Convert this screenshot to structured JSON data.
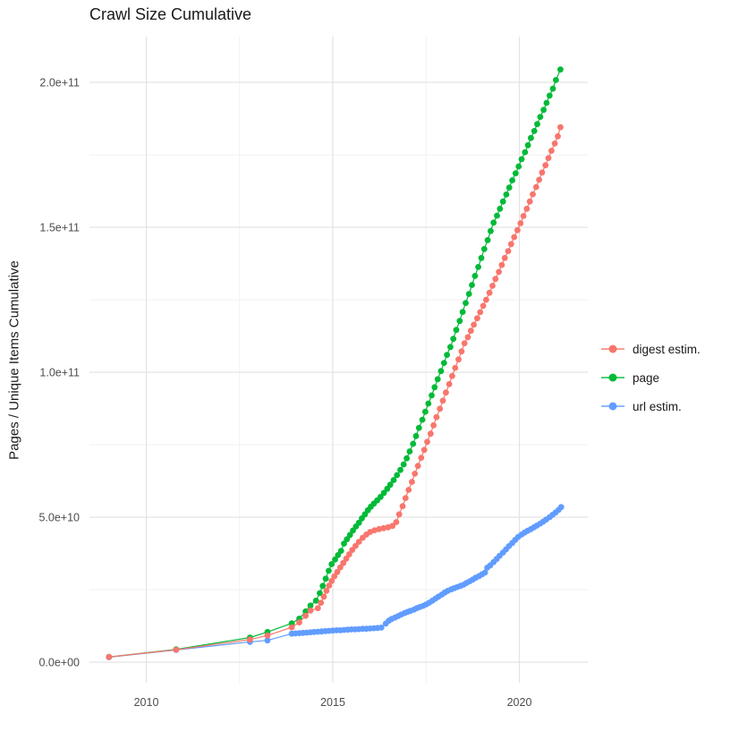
{
  "title": "Crawl Size Cumulative",
  "y_axis": {
    "title": "Pages / Unique Items Cumulative",
    "tick_labels": [
      "0.0e+00",
      "5.0e+10",
      "1.0e+11",
      "1.5e+11",
      "2.0e+11"
    ],
    "tick_values_e9": [
      0,
      50,
      100,
      150,
      200
    ],
    "minor_tick_values_e9": [
      25,
      75,
      125,
      175
    ]
  },
  "x_axis": {
    "tick_labels": [
      "2010",
      "2015",
      "2020"
    ],
    "tick_values": [
      2010,
      2015,
      2020
    ],
    "minor_tick_values": [
      2012.5,
      2017.5
    ]
  },
  "legend": {
    "items": [
      {
        "label": "digest estim.",
        "color": "#F8766D"
      },
      {
        "label": "page",
        "color": "#00BA38"
      },
      {
        "label": "url estim.",
        "color": "#619CFF"
      }
    ]
  },
  "colors": {
    "background": "#FFFFFF",
    "grid_major": "#E3E3E3",
    "grid_minor": "#F1F1F1",
    "title_text": "#1A1A1A",
    "tick_text": "#4D4D4D",
    "digest": "#F8766D",
    "page": "#00BA38",
    "url": "#619CFF"
  },
  "chart_data": {
    "type": "scatter",
    "title": "Crawl Size Cumulative",
    "xlabel": "",
    "ylabel": "Pages / Unique Items Cumulative",
    "x_unit": "year",
    "value_unit": "pages (1e9)",
    "xlim": [
      2008.48,
      2021.83
    ],
    "ylim_e9": [
      -7,
      216
    ],
    "grid": true,
    "legend_position": "right",
    "series": [
      {
        "name": "digest estim.",
        "color": "#F8766D",
        "points": [
          [
            2009,
            1.8
          ],
          [
            2010.8,
            4.3
          ],
          [
            2012.78,
            7.8
          ],
          [
            2013.25,
            9.2
          ],
          [
            2013.9,
            12
          ],
          [
            2014.1,
            13.7
          ],
          [
            2014.27,
            16
          ],
          [
            2014.4,
            17.8
          ],
          [
            2014.6,
            18.6
          ],
          [
            2014.68,
            20.5
          ],
          [
            2014.76,
            22.6
          ],
          [
            2014.83,
            24.6
          ],
          [
            2014.9,
            26.4
          ],
          [
            2014.97,
            28
          ],
          [
            2015.04,
            29.6
          ],
          [
            2015.12,
            31.1
          ],
          [
            2015.2,
            32.7
          ],
          [
            2015.28,
            34.2
          ],
          [
            2015.36,
            35.7
          ],
          [
            2015.44,
            37.2
          ],
          [
            2015.52,
            38.7
          ],
          [
            2015.61,
            40.1
          ],
          [
            2015.7,
            41.5
          ],
          [
            2015.8,
            42.9
          ],
          [
            2015.9,
            44
          ],
          [
            2016,
            44.9
          ],
          [
            2016.12,
            45.5
          ],
          [
            2016.24,
            45.9
          ],
          [
            2016.36,
            46.2
          ],
          [
            2016.48,
            46.5
          ],
          [
            2016.6,
            47
          ],
          [
            2016.7,
            48.3
          ],
          [
            2016.78,
            51
          ],
          [
            2016.87,
            53.8
          ],
          [
            2016.95,
            56.6
          ],
          [
            2017.03,
            59.4
          ],
          [
            2017.12,
            62.2
          ],
          [
            2017.2,
            65
          ],
          [
            2017.28,
            67.7
          ],
          [
            2017.37,
            70.5
          ],
          [
            2017.45,
            73.2
          ],
          [
            2017.53,
            76
          ],
          [
            2017.62,
            78.8
          ],
          [
            2017.7,
            81.7
          ],
          [
            2017.78,
            84.5
          ],
          [
            2017.87,
            87.4
          ],
          [
            2017.95,
            90.2
          ],
          [
            2018.03,
            93
          ],
          [
            2018.12,
            95.9
          ],
          [
            2018.2,
            98.7
          ],
          [
            2018.28,
            101.5
          ],
          [
            2018.37,
            104.4
          ],
          [
            2018.45,
            107.2
          ],
          [
            2018.53,
            110
          ],
          [
            2018.62,
            112.1
          ],
          [
            2018.7,
            114.3
          ],
          [
            2018.78,
            116.4
          ],
          [
            2018.87,
            118.6
          ],
          [
            2018.95,
            120.7
          ],
          [
            2019.03,
            122.9
          ],
          [
            2019.11,
            125
          ],
          [
            2019.2,
            127.4
          ],
          [
            2019.28,
            129.8
          ],
          [
            2019.36,
            132.2
          ],
          [
            2019.45,
            134.6
          ],
          [
            2019.53,
            137
          ],
          [
            2019.61,
            139.4
          ],
          [
            2019.7,
            141.8
          ],
          [
            2019.78,
            144.2
          ],
          [
            2019.86,
            146.6
          ],
          [
            2019.95,
            149
          ],
          [
            2020.03,
            151.4
          ],
          [
            2020.11,
            153.9
          ],
          [
            2020.2,
            156.4
          ],
          [
            2020.28,
            158.9
          ],
          [
            2020.36,
            161.4
          ],
          [
            2020.45,
            163.9
          ],
          [
            2020.53,
            166.4
          ],
          [
            2020.61,
            168.9
          ],
          [
            2020.7,
            171.4
          ],
          [
            2020.78,
            173.9
          ],
          [
            2020.86,
            176.4
          ],
          [
            2020.95,
            178.9
          ],
          [
            2021.03,
            181.4
          ],
          [
            2021.1,
            184.5
          ]
        ]
      },
      {
        "name": "page",
        "color": "#00BA38",
        "points": [
          [
            2009,
            1.8
          ],
          [
            2010.8,
            4.4
          ],
          [
            2012.78,
            8.5
          ],
          [
            2013.25,
            10.4
          ],
          [
            2013.9,
            13.4
          ],
          [
            2014.1,
            15
          ],
          [
            2014.27,
            17.5
          ],
          [
            2014.4,
            19.5
          ],
          [
            2014.55,
            21.2
          ],
          [
            2014.65,
            23.8
          ],
          [
            2014.73,
            26.3
          ],
          [
            2014.81,
            28.8
          ],
          [
            2014.89,
            31.5
          ],
          [
            2014.97,
            33.8
          ],
          [
            2015.06,
            35.4
          ],
          [
            2015.14,
            36.9
          ],
          [
            2015.22,
            38.4
          ],
          [
            2015.3,
            40.9
          ],
          [
            2015.38,
            42.4
          ],
          [
            2015.46,
            43.9
          ],
          [
            2015.54,
            45.4
          ],
          [
            2015.62,
            46.8
          ],
          [
            2015.7,
            48.1
          ],
          [
            2015.78,
            49.6
          ],
          [
            2015.86,
            51
          ],
          [
            2015.94,
            52.4
          ],
          [
            2016.02,
            53.6
          ],
          [
            2016.1,
            54.7
          ],
          [
            2016.19,
            55.8
          ],
          [
            2016.28,
            57
          ],
          [
            2016.37,
            58.4
          ],
          [
            2016.46,
            59.8
          ],
          [
            2016.54,
            61.2
          ],
          [
            2016.63,
            62.8
          ],
          [
            2016.72,
            64.5
          ],
          [
            2016.81,
            66.3
          ],
          [
            2016.9,
            68.2
          ],
          [
            2016.98,
            70.3
          ],
          [
            2017.06,
            72.7
          ],
          [
            2017.15,
            75.3
          ],
          [
            2017.23,
            78
          ],
          [
            2017.31,
            80.8
          ],
          [
            2017.4,
            83.6
          ],
          [
            2017.48,
            86.4
          ],
          [
            2017.56,
            89.2
          ],
          [
            2017.65,
            92
          ],
          [
            2017.73,
            94.8
          ],
          [
            2017.81,
            97.6
          ],
          [
            2017.9,
            100.4
          ],
          [
            2017.98,
            103.2
          ],
          [
            2018.06,
            106
          ],
          [
            2018.15,
            108.7
          ],
          [
            2018.23,
            111.5
          ],
          [
            2018.31,
            114.6
          ],
          [
            2018.4,
            117.7
          ],
          [
            2018.48,
            120.8
          ],
          [
            2018.56,
            123.9
          ],
          [
            2018.65,
            127
          ],
          [
            2018.73,
            130.1
          ],
          [
            2018.81,
            133.2
          ],
          [
            2018.9,
            136.3
          ],
          [
            2018.98,
            139.4
          ],
          [
            2019.06,
            142.5
          ],
          [
            2019.15,
            145.6
          ],
          [
            2019.23,
            148.7
          ],
          [
            2019.31,
            151.6
          ],
          [
            2019.4,
            154
          ],
          [
            2019.48,
            156.4
          ],
          [
            2019.56,
            158.9
          ],
          [
            2019.65,
            161.3
          ],
          [
            2019.73,
            163.7
          ],
          [
            2019.81,
            166.2
          ],
          [
            2019.9,
            168.6
          ],
          [
            2019.98,
            171
          ],
          [
            2020.06,
            173.5
          ],
          [
            2020.15,
            175.9
          ],
          [
            2020.23,
            178.3
          ],
          [
            2020.31,
            180.8
          ],
          [
            2020.4,
            183.2
          ],
          [
            2020.48,
            185.6
          ],
          [
            2020.56,
            188.1
          ],
          [
            2020.65,
            190.5
          ],
          [
            2020.73,
            192.9
          ],
          [
            2020.81,
            195.4
          ],
          [
            2020.9,
            197.8
          ],
          [
            2020.98,
            200.8
          ],
          [
            2021.1,
            204.4
          ]
        ]
      },
      {
        "name": "url estim.",
        "color": "#619CFF",
        "points": [
          [
            2009,
            1.7
          ],
          [
            2010.8,
            4.2
          ],
          [
            2012.78,
            7
          ],
          [
            2013.25,
            7.5
          ],
          [
            2013.9,
            9.8
          ],
          [
            2014,
            9.9
          ],
          [
            2014.1,
            10
          ],
          [
            2014.2,
            10.1
          ],
          [
            2014.3,
            10.2
          ],
          [
            2014.4,
            10.3
          ],
          [
            2014.5,
            10.4
          ],
          [
            2014.6,
            10.5
          ],
          [
            2014.7,
            10.6
          ],
          [
            2014.8,
            10.7
          ],
          [
            2014.9,
            10.8
          ],
          [
            2015,
            10.9
          ],
          [
            2015.1,
            11
          ],
          [
            2015.2,
            11
          ],
          [
            2015.3,
            11.1
          ],
          [
            2015.4,
            11.2
          ],
          [
            2015.5,
            11.3
          ],
          [
            2015.6,
            11.3
          ],
          [
            2015.7,
            11.4
          ],
          [
            2015.8,
            11.5
          ],
          [
            2015.9,
            11.5
          ],
          [
            2016,
            11.6
          ],
          [
            2016.1,
            11.7
          ],
          [
            2016.2,
            11.8
          ],
          [
            2016.3,
            11.9
          ],
          [
            2016.42,
            13.3
          ],
          [
            2016.5,
            14.3
          ],
          [
            2016.58,
            14.9
          ],
          [
            2016.67,
            15.4
          ],
          [
            2016.75,
            15.9
          ],
          [
            2016.83,
            16.4
          ],
          [
            2016.92,
            16.9
          ],
          [
            2017,
            17.3
          ],
          [
            2017.08,
            17.7
          ],
          [
            2017.17,
            18.1
          ],
          [
            2017.25,
            18.6
          ],
          [
            2017.33,
            19
          ],
          [
            2017.42,
            19.4
          ],
          [
            2017.5,
            19.9
          ],
          [
            2017.58,
            20.5
          ],
          [
            2017.67,
            21.2
          ],
          [
            2017.75,
            21.9
          ],
          [
            2017.83,
            22.6
          ],
          [
            2017.92,
            23.3
          ],
          [
            2018,
            24
          ],
          [
            2018.08,
            24.6
          ],
          [
            2018.17,
            25.1
          ],
          [
            2018.25,
            25.5
          ],
          [
            2018.33,
            25.9
          ],
          [
            2018.42,
            26.3
          ],
          [
            2018.5,
            26.7
          ],
          [
            2018.58,
            27.3
          ],
          [
            2018.67,
            27.9
          ],
          [
            2018.75,
            28.5
          ],
          [
            2018.83,
            29.1
          ],
          [
            2018.92,
            29.7
          ],
          [
            2019,
            30.3
          ],
          [
            2019.08,
            30.9
          ],
          [
            2019.14,
            32.6
          ],
          [
            2019.22,
            33.4
          ],
          [
            2019.31,
            34.5
          ],
          [
            2019.39,
            35.6
          ],
          [
            2019.47,
            36.7
          ],
          [
            2019.56,
            37.8
          ],
          [
            2019.64,
            38.9
          ],
          [
            2019.72,
            40
          ],
          [
            2019.81,
            41.1
          ],
          [
            2019.89,
            42.2
          ],
          [
            2019.97,
            43.2
          ],
          [
            2020.06,
            44
          ],
          [
            2020.14,
            44.7
          ],
          [
            2020.22,
            45.3
          ],
          [
            2020.31,
            45.9
          ],
          [
            2020.39,
            46.5
          ],
          [
            2020.47,
            47.1
          ],
          [
            2020.56,
            47.8
          ],
          [
            2020.64,
            48.5
          ],
          [
            2020.72,
            49.2
          ],
          [
            2020.81,
            50
          ],
          [
            2020.89,
            50.8
          ],
          [
            2020.97,
            51.6
          ],
          [
            2021.05,
            52.5
          ],
          [
            2021.12,
            53.5
          ]
        ]
      }
    ]
  }
}
